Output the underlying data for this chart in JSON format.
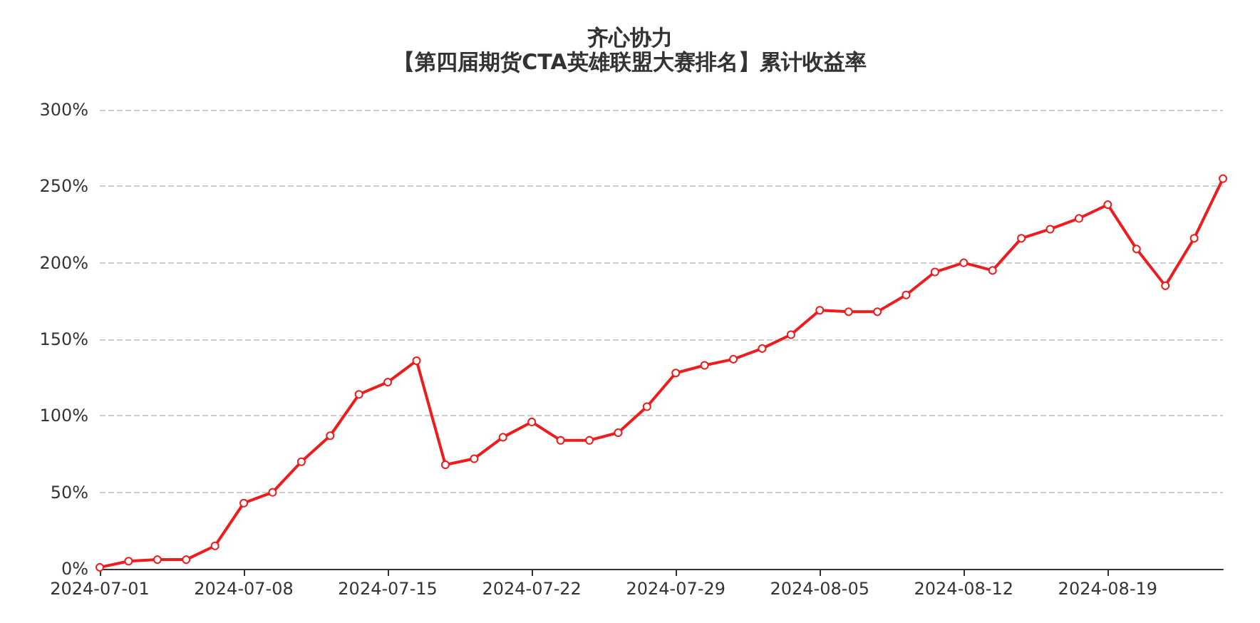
{
  "chart_data": {
    "type": "line",
    "title": "齐心协力",
    "subtitle": "【第四届期货CTA英雄联盟大赛排名】累计收益率",
    "categories": [
      "2024-07-01",
      null,
      null,
      null,
      null,
      "2024-07-08",
      null,
      null,
      null,
      null,
      "2024-07-15",
      null,
      null,
      null,
      null,
      "2024-07-22",
      null,
      null,
      null,
      null,
      "2024-07-29",
      null,
      null,
      null,
      null,
      "2024-08-05",
      null,
      null,
      null,
      null,
      "2024-08-12",
      null,
      null,
      null,
      null,
      "2024-08-19",
      null,
      null,
      null,
      null
    ],
    "series": [
      {
        "color": "#ee1c1c",
        "values": [
          1,
          5,
          6,
          6,
          15,
          43,
          50,
          70,
          87,
          114,
          122,
          136,
          68,
          72,
          86,
          96,
          84,
          84,
          89,
          106,
          128,
          133,
          137,
          144,
          153,
          169,
          168,
          168,
          179,
          194,
          200,
          195,
          216,
          222,
          229,
          238,
          209,
          185,
          216,
          255
        ]
      }
    ],
    "ylim": [
      0,
      300
    ],
    "yticks": [
      {
        "value": 0,
        "label": "0%"
      },
      {
        "value": 50,
        "label": "50%"
      },
      {
        "value": 100,
        "label": "100%"
      },
      {
        "value": 150,
        "label": "150%"
      },
      {
        "value": 200,
        "label": "200%"
      },
      {
        "value": 250,
        "label": "250%"
      },
      {
        "value": 300,
        "label": "300%"
      }
    ],
    "grid": "y",
    "marker": "circle",
    "line_style": "solid"
  }
}
